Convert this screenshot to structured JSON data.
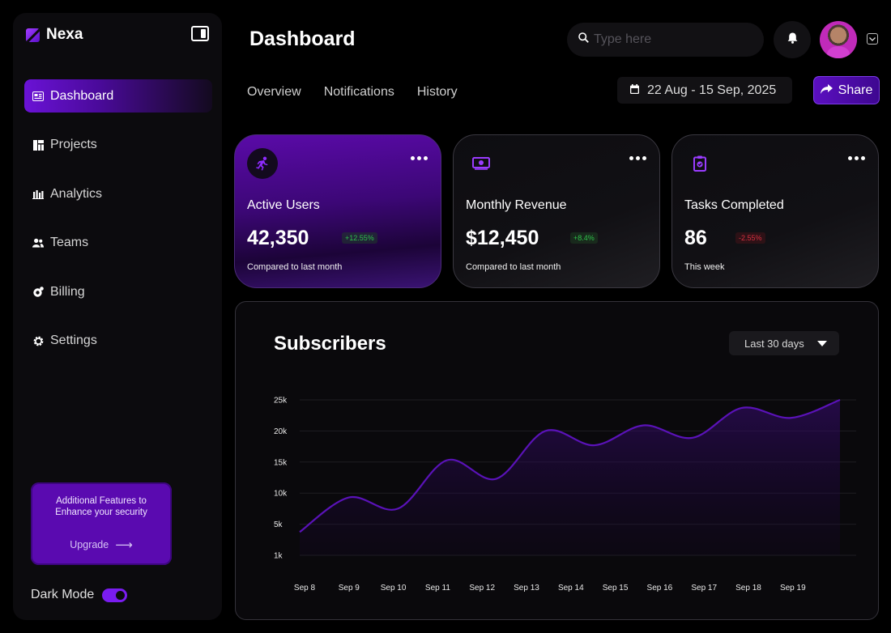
{
  "app": {
    "name": "Nexa"
  },
  "sidebar": {
    "items": [
      {
        "label": "Dashboard",
        "icon": "dashboard-icon",
        "active": true
      },
      {
        "label": "Projects",
        "icon": "projects-icon",
        "active": false
      },
      {
        "label": "Analytics",
        "icon": "analytics-icon",
        "active": false
      },
      {
        "label": "Teams",
        "icon": "teams-icon",
        "active": false
      },
      {
        "label": "Billing",
        "icon": "billing-icon",
        "active": false
      },
      {
        "label": "Settings",
        "icon": "settings-icon",
        "active": false
      }
    ],
    "upgrade": {
      "text": "Additional Features to Enhance your security",
      "link": "Upgrade"
    },
    "dark_mode": {
      "label": "Dark Mode",
      "on": true
    }
  },
  "header": {
    "title": "Dashboard",
    "search_placeholder": "Type here",
    "tabs": [
      "Overview",
      "Notifications",
      "History"
    ],
    "date_range": "22 Aug - 15 Sep, 2025",
    "share_label": "Share"
  },
  "cards": [
    {
      "title": "Active Users",
      "value": "42,350",
      "change": "+12.55%",
      "trend": "up",
      "subtitle": "Compared to last month",
      "icon": "running-person-icon"
    },
    {
      "title": "Monthly Revenue",
      "value": "$12,450",
      "change": "+8.4%",
      "trend": "up",
      "subtitle": "Compared to last month",
      "icon": "money-icon"
    },
    {
      "title": "Tasks Completed",
      "value": "86",
      "change": "-2.55%",
      "trend": "down",
      "subtitle": "This week",
      "icon": "clipboard-check-icon"
    }
  ],
  "chart": {
    "title": "Subscribers",
    "range_label": "Last 30 days"
  },
  "chart_data": {
    "type": "area",
    "title": "Subscribers",
    "x": [
      "Sep 8",
      "Sep 9",
      "Sep 10",
      "Sep 11",
      "Sep 12",
      "Sep 13",
      "Sep 14",
      "Sep 15",
      "Sep 16",
      "Sep 17",
      "Sep 18",
      "Sep 19"
    ],
    "y_ticks": [
      "25k",
      "20k",
      "15k",
      "10k",
      "5k",
      "1k"
    ],
    "y_tick_values": [
      25000,
      20000,
      15000,
      10000,
      5000,
      1000
    ],
    "series": [
      {
        "points": [
          {
            "x": "Sep 8",
            "y": 4000
          },
          {
            "x": "Sep 9",
            "y": 9300
          },
          {
            "x": "Sep 10",
            "y": 7500
          },
          {
            "x": "Sep 11",
            "y": 15300
          },
          {
            "x": "Sep 12",
            "y": 12300
          },
          {
            "x": "Sep 13",
            "y": 20000
          },
          {
            "x": "Sep 14",
            "y": 17700
          },
          {
            "x": "Sep 15",
            "y": 20900
          },
          {
            "x": "Sep 16",
            "y": 18900
          },
          {
            "x": "Sep 17",
            "y": 23700
          },
          {
            "x": "Sep 18",
            "y": 22100
          },
          {
            "x": "Sep 19",
            "y": 25000
          }
        ]
      }
    ],
    "ylim": [
      1000,
      25000
    ],
    "grid": true,
    "line_color": "#5a12b8"
  }
}
